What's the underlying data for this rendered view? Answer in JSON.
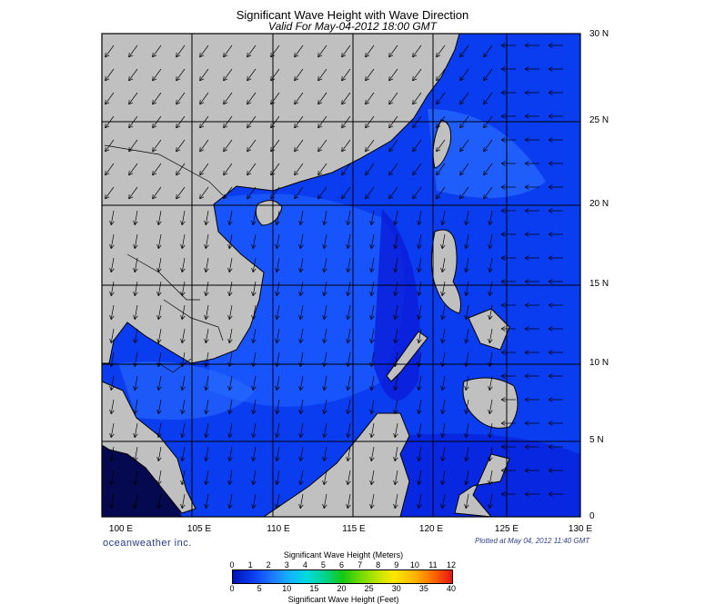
{
  "title": "Significant Wave Height with Wave Direction",
  "subtitle": "Valid For May-04-2012 18:00 GMT",
  "longitude_labels": [
    "100 E",
    "105 E",
    "110 E",
    "115 E",
    "120 E",
    "125 E",
    "130 E"
  ],
  "latitude_labels": [
    "30 N",
    "25 N",
    "20 N",
    "15 N",
    "10 N",
    "5 N",
    "0"
  ],
  "brand": "oceanweather inc.",
  "plotted_note": "Plotted at May 04, 2012 11:40 GMT",
  "colorbar": {
    "title_meters": "Significant Wave Height (Meters)",
    "title_feet": "Significant Wave Height (Feet)",
    "meters_ticks": [
      "0",
      "1",
      "2",
      "3",
      "4",
      "5",
      "6",
      "7",
      "8",
      "9",
      "10",
      "11",
      "12"
    ],
    "feet_ticks": [
      "0",
      "5",
      "10",
      "15",
      "20",
      "25",
      "30",
      "35",
      "40"
    ]
  },
  "colors": {
    "land": "#c0c0c0",
    "sea_low": "#0014c8",
    "sea_mid": "#0a3cf0",
    "sea_high": "#2a6cff",
    "frame": "#000000"
  }
}
